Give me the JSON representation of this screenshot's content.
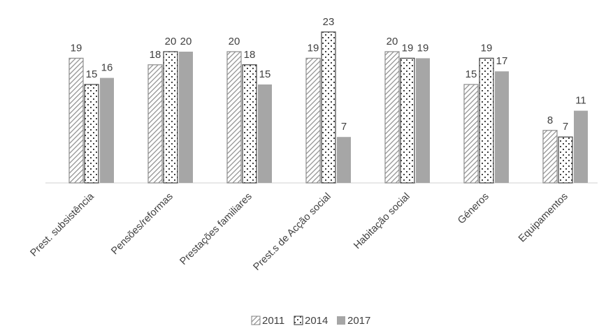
{
  "chart_data": {
    "type": "bar",
    "categories": [
      "Prest. subsistência",
      "Pensões/reformas",
      "Prestações familiares",
      "Prest.s de Acção social",
      "Habitação social",
      "Géneros",
      "Equipamentos"
    ],
    "series": [
      {
        "name": "2011",
        "values": [
          19,
          18,
          20,
          19,
          20,
          15,
          8
        ],
        "pattern": "diagonal-hatch",
        "color": "#8c8c8c"
      },
      {
        "name": "2014",
        "values": [
          15,
          20,
          18,
          23,
          19,
          19,
          7
        ],
        "pattern": "dotted-cross",
        "color": "#404040"
      },
      {
        "name": "2017",
        "values": [
          16,
          20,
          15,
          7,
          19,
          17,
          11
        ],
        "pattern": "solid",
        "color": "#a6a6a6"
      }
    ],
    "ylim": [
      0,
      25
    ],
    "grid": false,
    "data_labels": true,
    "legend_position": "bottom",
    "title": "",
    "xlabel": "",
    "ylabel": ""
  }
}
